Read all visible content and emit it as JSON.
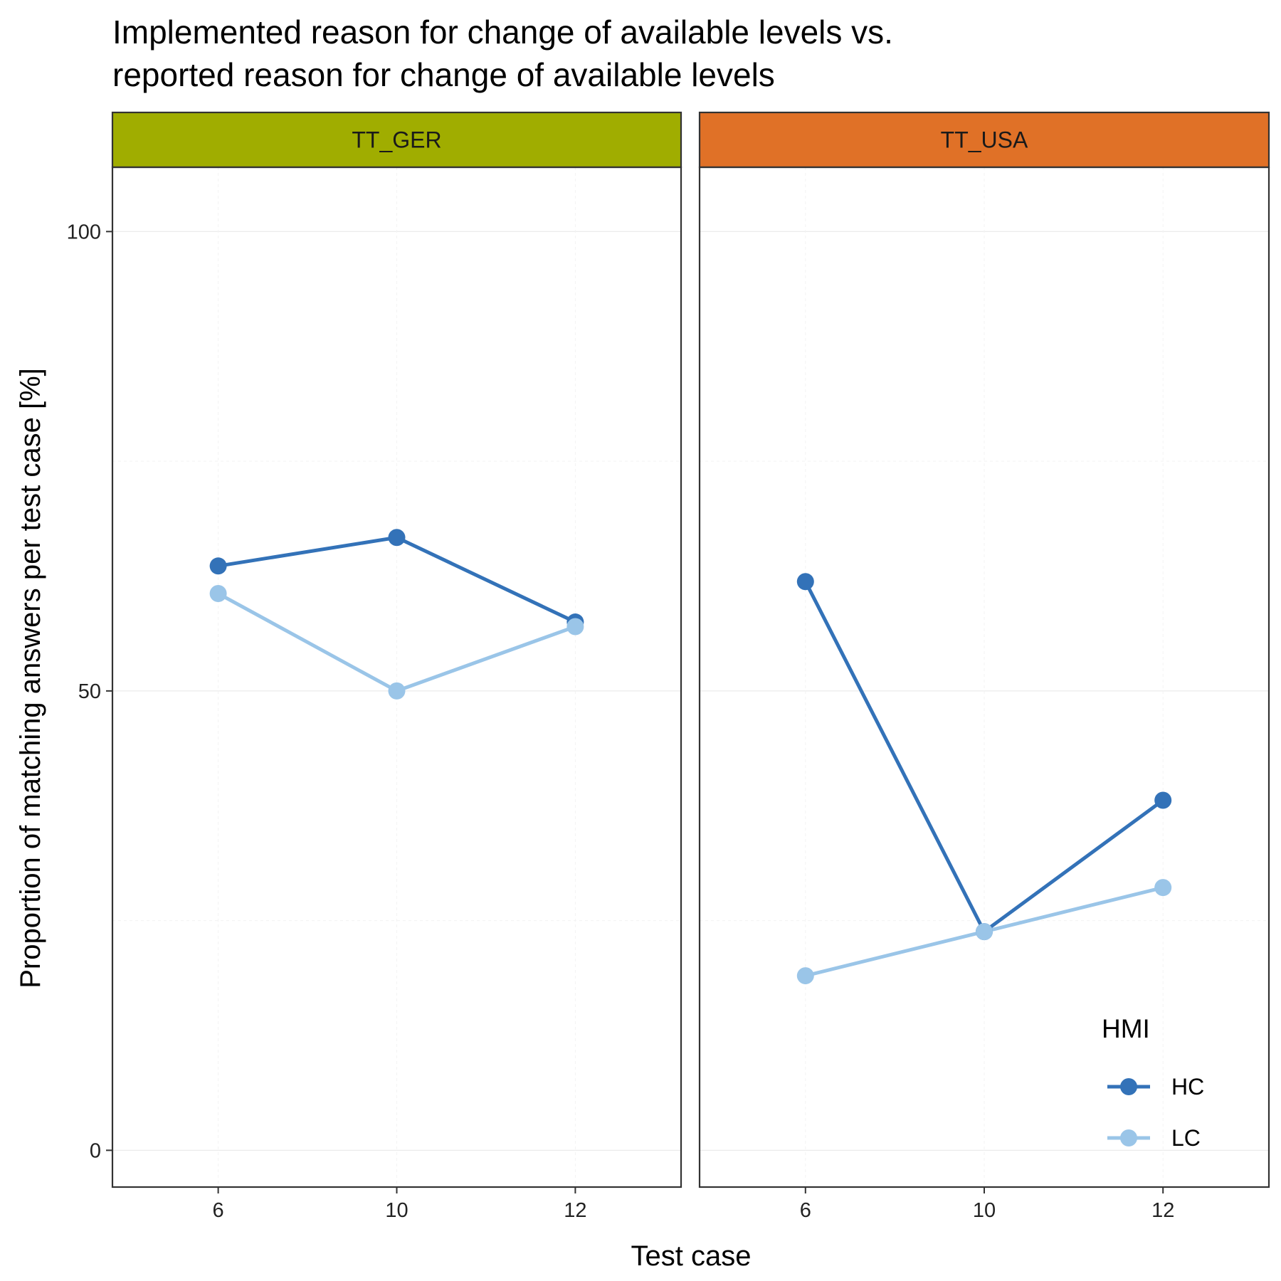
{
  "chart_data": {
    "type": "line",
    "title_lines": [
      "Implemented reason for change of available levels vs.",
      "reported reason for change of available levels"
    ],
    "xlabel": "Test case",
    "ylabel": "Proportion of matching answers per test case [%]",
    "x_categories": [
      "6",
      "10",
      "12"
    ],
    "y_ticks": [
      0,
      50,
      100
    ],
    "ylim": [
      -4,
      107
    ],
    "grid": true,
    "legend": {
      "title": "HMI",
      "placement": "bottom-right inside last panel",
      "entries": [
        "HC",
        "LC"
      ]
    },
    "panels": [
      {
        "label": "TT_GER",
        "strip_color": "#a0ad00",
        "series": [
          {
            "name": "HC",
            "color": "#3372b8",
            "values": [
              63.6,
              66.7,
              57.5
            ]
          },
          {
            "name": "LC",
            "color": "#9ac5e8",
            "values": [
              60.6,
              50.0,
              57.0
            ]
          }
        ]
      },
      {
        "label": "TT_USA",
        "strip_color": "#e07127",
        "series": [
          {
            "name": "HC",
            "color": "#3372b8",
            "values": [
              61.9,
              23.8,
              38.1
            ]
          },
          {
            "name": "LC",
            "color": "#9ac5e8",
            "values": [
              19.0,
              23.8,
              28.6
            ]
          }
        ]
      }
    ]
  }
}
